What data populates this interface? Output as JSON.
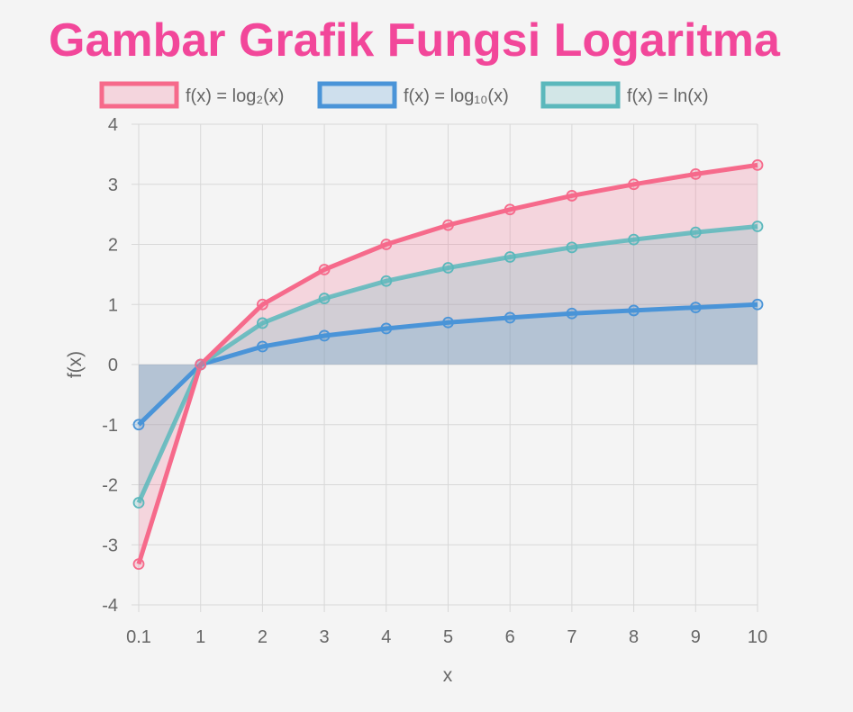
{
  "chart_data": {
    "type": "line",
    "title": "Gambar Grafik Fungsi Logaritma",
    "title_color": "#f2479a",
    "xlabel": "x",
    "ylabel": "f(x)",
    "categories": [
      "0.1",
      "1",
      "2",
      "3",
      "4",
      "5",
      "6",
      "7",
      "8",
      "9",
      "10"
    ],
    "ylim": [
      -4,
      4
    ],
    "yticks": [
      "4",
      "3",
      "2",
      "1",
      "0",
      "-1",
      "-2",
      "-3",
      "-4"
    ],
    "grid": true,
    "legend_position": "top",
    "series": [
      {
        "name": "f(x) = log₂(x)",
        "color": "#f66a8b",
        "fill": "rgba(246,106,139,0.22)",
        "values": [
          -3.32,
          0,
          1,
          1.58,
          2,
          2.32,
          2.58,
          2.81,
          3,
          3.17,
          3.32
        ]
      },
      {
        "name": "f(x) = log₁₀(x)",
        "color": "#4a94d8",
        "fill": "rgba(74,148,216,0.22)",
        "values": [
          -1,
          0,
          0.3,
          0.48,
          0.6,
          0.7,
          0.78,
          0.85,
          0.9,
          0.95,
          1
        ]
      },
      {
        "name": "f(x) = ln(x)",
        "color": "#5bb8bc",
        "fill": "rgba(91,184,188,0.22)",
        "values": [
          -2.3,
          0,
          0.69,
          1.1,
          1.39,
          1.61,
          1.79,
          1.95,
          2.08,
          2.2,
          2.3
        ]
      }
    ]
  }
}
